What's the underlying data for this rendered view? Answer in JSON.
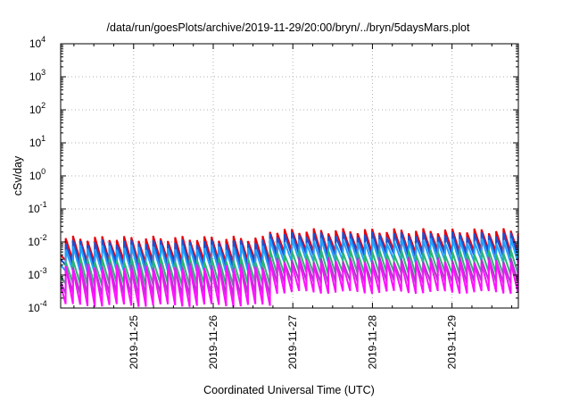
{
  "chart_data": {
    "type": "line",
    "title": "/data/run/goesPlots/archive/2019-11-29/20:00/bryn/../bryn/5daysMars.plot",
    "xlabel": "Coordinated Universal Time (UTC)",
    "ylabel": "cSv/day",
    "x_range": [
      "2019-11-24T02:00",
      "2019-11-29T20:00"
    ],
    "x_ticks": [
      "2019-11-25",
      "2019-11-26",
      "2019-11-27",
      "2019-11-28",
      "2019-11-29"
    ],
    "y_scale": "log",
    "ylim": [
      0.0001,
      10000
    ],
    "y_ticks": [
      {
        "base": "10",
        "exp": "-4"
      },
      {
        "base": "10",
        "exp": "-3"
      },
      {
        "base": "10",
        "exp": "-2"
      },
      {
        "base": "10",
        "exp": "-1"
      },
      {
        "base": "10",
        "exp": "0"
      },
      {
        "base": "10",
        "exp": "1"
      },
      {
        "base": "10",
        "exp": "2"
      },
      {
        "base": "10",
        "exp": "3"
      },
      {
        "base": "10",
        "exp": "4"
      }
    ],
    "grid": true,
    "legend": "none",
    "pattern": "sawtooth: sharp rise every ~2.2 h followed by decay over each interval",
    "approx_period_hours": 2.2,
    "series": [
      {
        "color": "#e8000b",
        "start_value": 0.004,
        "peak_early": 0.013,
        "trough_early": 0.0025,
        "peak_late": 0.022,
        "trough_late": 0.005
      },
      {
        "color": "#1f4fcf",
        "start_value": 0.003,
        "peak_early": 0.01,
        "trough_early": 0.0018,
        "peak_late": 0.017,
        "trough_late": 0.0038
      },
      {
        "color": "#1fa0ff",
        "start_value": 0.002,
        "peak_early": 0.007,
        "trough_early": 0.0012,
        "peak_late": 0.011,
        "trough_late": 0.0025
      },
      {
        "color": "#2bb673",
        "start_value": 0.0009,
        "peak_early": 0.003,
        "trough_early": 0.0005,
        "peak_late": 0.005,
        "trough_late": 0.0011
      },
      {
        "color": "#a040c0",
        "start_value": 0.0006,
        "peak_early": 0.002,
        "trough_early": 0.00025,
        "peak_late": 0.003,
        "trough_late": 0.0006
      },
      {
        "color": "#ff10ff",
        "start_value": 0.0005,
        "peak_early": 0.0018,
        "trough_early": 0.00012,
        "peak_late": 0.0025,
        "trough_late": 0.0003
      }
    ]
  }
}
